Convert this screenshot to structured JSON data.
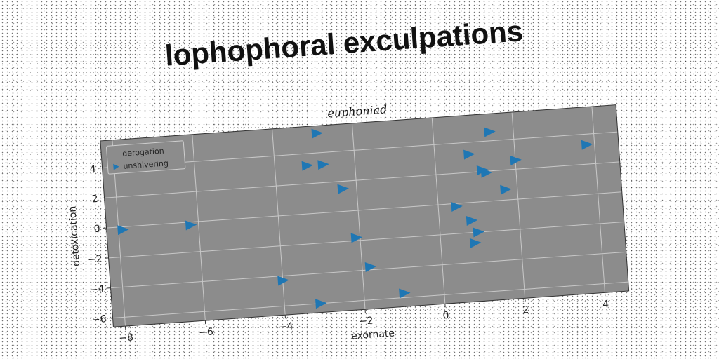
{
  "page_title": "lophophoral exculpations",
  "chart_data": {
    "type": "scatter",
    "title": "lophophoral exculpations",
    "subtitle": "euphoniad",
    "xlabel": "exornate",
    "ylabel": "detoxication",
    "xlim": [
      -8.3,
      4.6
    ],
    "ylim": [
      -6.6,
      5.8
    ],
    "xticks": [
      -8,
      -6,
      -4,
      -2,
      0,
      2,
      4
    ],
    "yticks": [
      -6,
      -4,
      -2,
      0,
      2,
      4
    ],
    "xtick_labels": [
      "−8",
      "−6",
      "−4",
      "−2",
      "0",
      "2",
      "4"
    ],
    "ytick_labels": [
      "−6",
      "−4",
      "−2",
      "0",
      "2",
      "4"
    ],
    "grid": true,
    "legend_position": "top-left",
    "rotation_deg": -4,
    "colors": {
      "plot_bg": "#8c8c8c",
      "grid": "#c8c8c8",
      "marker": "#1f77b4"
    },
    "series": [
      {
        "name": "derogation",
        "marker": "none",
        "x": [],
        "y": []
      },
      {
        "name": "unshivering",
        "marker": "triangle-right",
        "x": [
          -7.9,
          -6.2,
          -4.0,
          -3.2,
          -3.1,
          -2.8,
          -2.35,
          -2.1,
          -1.8,
          -1.0,
          -2.9,
          0.45,
          0.8,
          0.85,
          0.95,
          0.85,
          1.15,
          1.25,
          1.4,
          1.7,
          2.0,
          3.8
        ],
        "y": [
          -0.2,
          -0.2,
          -4.3,
          3.2,
          -6.0,
          3.2,
          1.5,
          -1.8,
          -3.8,
          -5.7,
          5.3,
          -0.2,
          -1.2,
          -2.7,
          -2.0,
          3.2,
          2.1,
          1.9,
          4.6,
          0.7,
          2.6,
          3.3
        ]
      }
    ]
  }
}
